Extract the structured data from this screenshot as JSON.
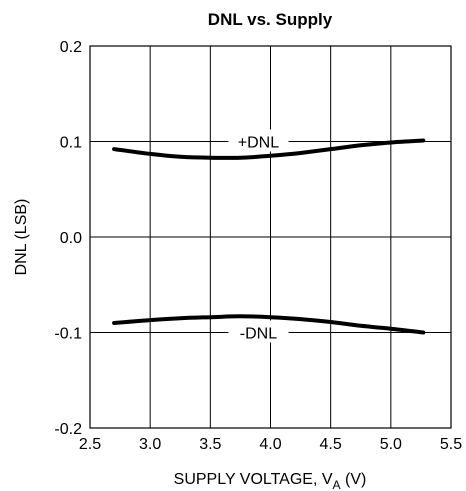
{
  "chart_data": {
    "type": "line",
    "title": "DNL vs. Supply",
    "xlabel": "SUPPLY VOLTAGE, V",
    "xlabel_subscript": "A",
    "xlabel_suffix": " (V)",
    "ylabel": "DNL (LSB)",
    "xlim": [
      2.5,
      5.5
    ],
    "ylim": [
      -0.2,
      0.2
    ],
    "xticks": [
      2.5,
      3.0,
      3.5,
      4.0,
      4.5,
      5.0,
      5.5
    ],
    "xtick_labels": [
      "2.5",
      "3.0",
      "3.5",
      "4.0",
      "4.5",
      "5.0",
      "5.5"
    ],
    "yticks": [
      0.2,
      0.1,
      0.0,
      -0.1,
      -0.2
    ],
    "ytick_labels": [
      "0.2",
      "0.1",
      "0.0",
      "-0.1",
      "-0.2"
    ],
    "grid": true,
    "series": [
      {
        "name": "+DNL",
        "x": [
          2.7,
          3.0,
          3.25,
          3.5,
          3.75,
          4.0,
          4.25,
          4.5,
          4.75,
          5.0,
          5.27
        ],
        "y": [
          0.092,
          0.087,
          0.084,
          0.083,
          0.083,
          0.085,
          0.088,
          0.092,
          0.096,
          0.099,
          0.101
        ]
      },
      {
        "name": "-DNL",
        "x": [
          2.7,
          3.0,
          3.25,
          3.5,
          3.75,
          4.0,
          4.25,
          4.5,
          4.75,
          5.0,
          5.27
        ],
        "y": [
          -0.09,
          -0.087,
          -0.085,
          -0.084,
          -0.083,
          -0.084,
          -0.086,
          -0.089,
          -0.093,
          -0.096,
          -0.1
        ]
      }
    ]
  }
}
